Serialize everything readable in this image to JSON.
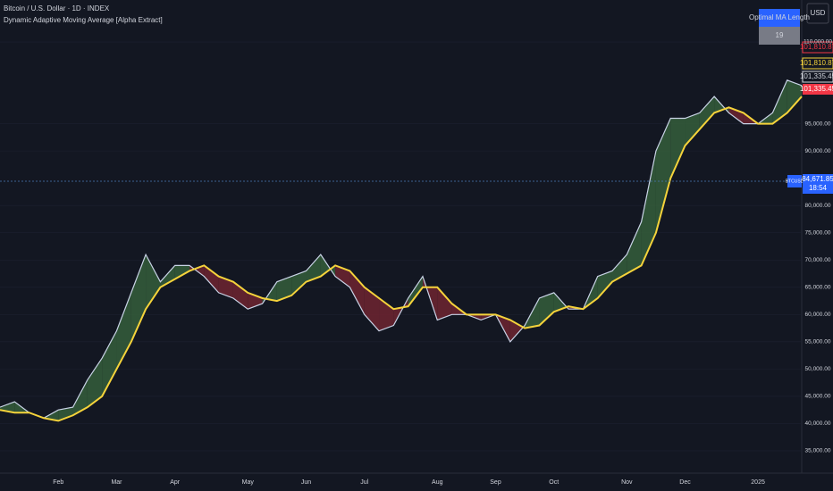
{
  "header": {
    "symbol": "Bitcoin / U.S. Dollar · 1D · INDEX",
    "indicator": "Dynamic Adaptive Moving Average [Alpha Extract]",
    "currency": "USD"
  },
  "table": {
    "header": "Optimal MA Length",
    "value": "19"
  },
  "price_tags": [
    "101,810.87",
    "101,810.87",
    "101,335.45",
    "101,335.45"
  ],
  "crosshair": {
    "symbol": "BTCUSD",
    "price": "84,671.85",
    "time": "18:54"
  },
  "chart_data": {
    "type": "line",
    "categories": [
      null,
      null,
      null,
      null,
      "Feb",
      null,
      null,
      null,
      "Mar",
      null,
      null,
      null,
      "Apr",
      null,
      null,
      null,
      null,
      "May",
      null,
      null,
      null,
      "Jun",
      null,
      null,
      null,
      "Jul",
      null,
      null,
      null,
      null,
      "Aug",
      null,
      null,
      null,
      "Sep",
      null,
      null,
      null,
      "Oct",
      null,
      null,
      null,
      null,
      "Nov",
      null,
      null,
      null,
      "Dec",
      null,
      null,
      null,
      null,
      "2025",
      null,
      null,
      null
    ],
    "series": [
      {
        "name": "BTCUSD",
        "color": "#c9d3e6",
        "values": [
          43000,
          44000,
          42000,
          41000,
          42500,
          43000,
          48000,
          52000,
          57000,
          64000,
          71000,
          66000,
          69000,
          69000,
          67000,
          64000,
          63000,
          61000,
          62000,
          66000,
          67000,
          68000,
          71000,
          67000,
          65000,
          60000,
          57000,
          58000,
          63000,
          67000,
          59000,
          60000,
          60000,
          59000,
          60000,
          55000,
          58000,
          63000,
          64000,
          61000,
          61000,
          67000,
          68000,
          71000,
          77000,
          90000,
          96000,
          96000,
          97000,
          100000,
          97000,
          95000,
          95000,
          97000,
          103000,
          102000
        ]
      },
      {
        "name": "MA",
        "color": "#f5d33b",
        "values": [
          42500,
          42000,
          42000,
          41000,
          40500,
          41500,
          43000,
          45000,
          50000,
          55000,
          61000,
          65000,
          66500,
          68000,
          69000,
          67000,
          66000,
          64000,
          63000,
          62500,
          63500,
          66000,
          67000,
          69000,
          68000,
          65000,
          63000,
          61000,
          61500,
          65000,
          65000,
          62000,
          60000,
          60000,
          60000,
          59000,
          57500,
          58000,
          60500,
          61500,
          61000,
          63000,
          66000,
          67500,
          69000,
          75000,
          85000,
          91000,
          94000,
          97000,
          98000,
          97000,
          95000,
          95000,
          97000,
          100000
        ]
      }
    ],
    "fill_colors": {
      "above": "#355e3b",
      "below": "#6e2430"
    },
    "ylim": [
      30900,
      117700
    ],
    "yticks": [
      {
        "value": 35000,
        "label": "35,000.00"
      },
      {
        "value": 40000,
        "label": "40,000.00"
      },
      {
        "value": 45000,
        "label": "45,000.00"
      },
      {
        "value": 50000,
        "label": "50,000.00"
      },
      {
        "value": 55000,
        "label": "55,000.00"
      },
      {
        "value": 60000,
        "label": "60,000.00"
      },
      {
        "value": 65000,
        "label": "65,000.00"
      },
      {
        "value": 70000,
        "label": "70,000.00"
      },
      {
        "value": 75000,
        "label": "75,000.00"
      },
      {
        "value": 80000,
        "label": "80,000.00"
      },
      {
        "value": 90000,
        "label": "90,000.00"
      },
      {
        "value": 95000,
        "label": "95,000.00"
      },
      {
        "value": 110000,
        "label": "110,000.00"
      }
    ],
    "grid": true
  }
}
